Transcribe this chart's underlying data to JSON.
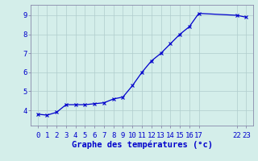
{
  "x_plot": [
    0,
    1,
    2,
    3,
    4,
    5,
    6,
    7,
    8,
    9,
    10,
    11,
    12,
    13,
    14,
    15,
    16,
    17,
    21,
    22
  ],
  "y": [
    3.8,
    3.75,
    3.9,
    4.3,
    4.3,
    4.3,
    4.35,
    4.4,
    4.6,
    4.7,
    5.3,
    6.0,
    6.6,
    7.0,
    7.5,
    8.0,
    8.4,
    9.1,
    9.0,
    8.9
  ],
  "line_color": "#0000cc",
  "marker": "x",
  "marker_size": 3,
  "marker_lw": 0.8,
  "line_width": 0.9,
  "bg_color": "#d4eeea",
  "grid_color": "#b0cccc",
  "xlabel": "Graphe des températures (°c)",
  "xlabel_color": "#0000cc",
  "xlabel_fontsize": 7.5,
  "tick_label_color": "#0000cc",
  "tick_fontsize": 6.5,
  "ylim": [
    3.2,
    9.55
  ],
  "yticks": [
    4,
    5,
    6,
    7,
    8,
    9
  ],
  "xlim": [
    -0.7,
    22.7
  ],
  "xtick_positions": [
    0,
    1,
    2,
    3,
    4,
    5,
    6,
    7,
    8,
    9,
    10,
    11,
    12,
    13,
    14,
    15,
    16,
    17,
    21,
    22
  ],
  "xtick_labels": [
    "0",
    "1",
    "2",
    "3",
    "4",
    "5",
    "6",
    "7",
    "8",
    "9",
    "10",
    "11",
    "12",
    "13",
    "14",
    "15",
    "16",
    "17",
    "22",
    "23"
  ]
}
